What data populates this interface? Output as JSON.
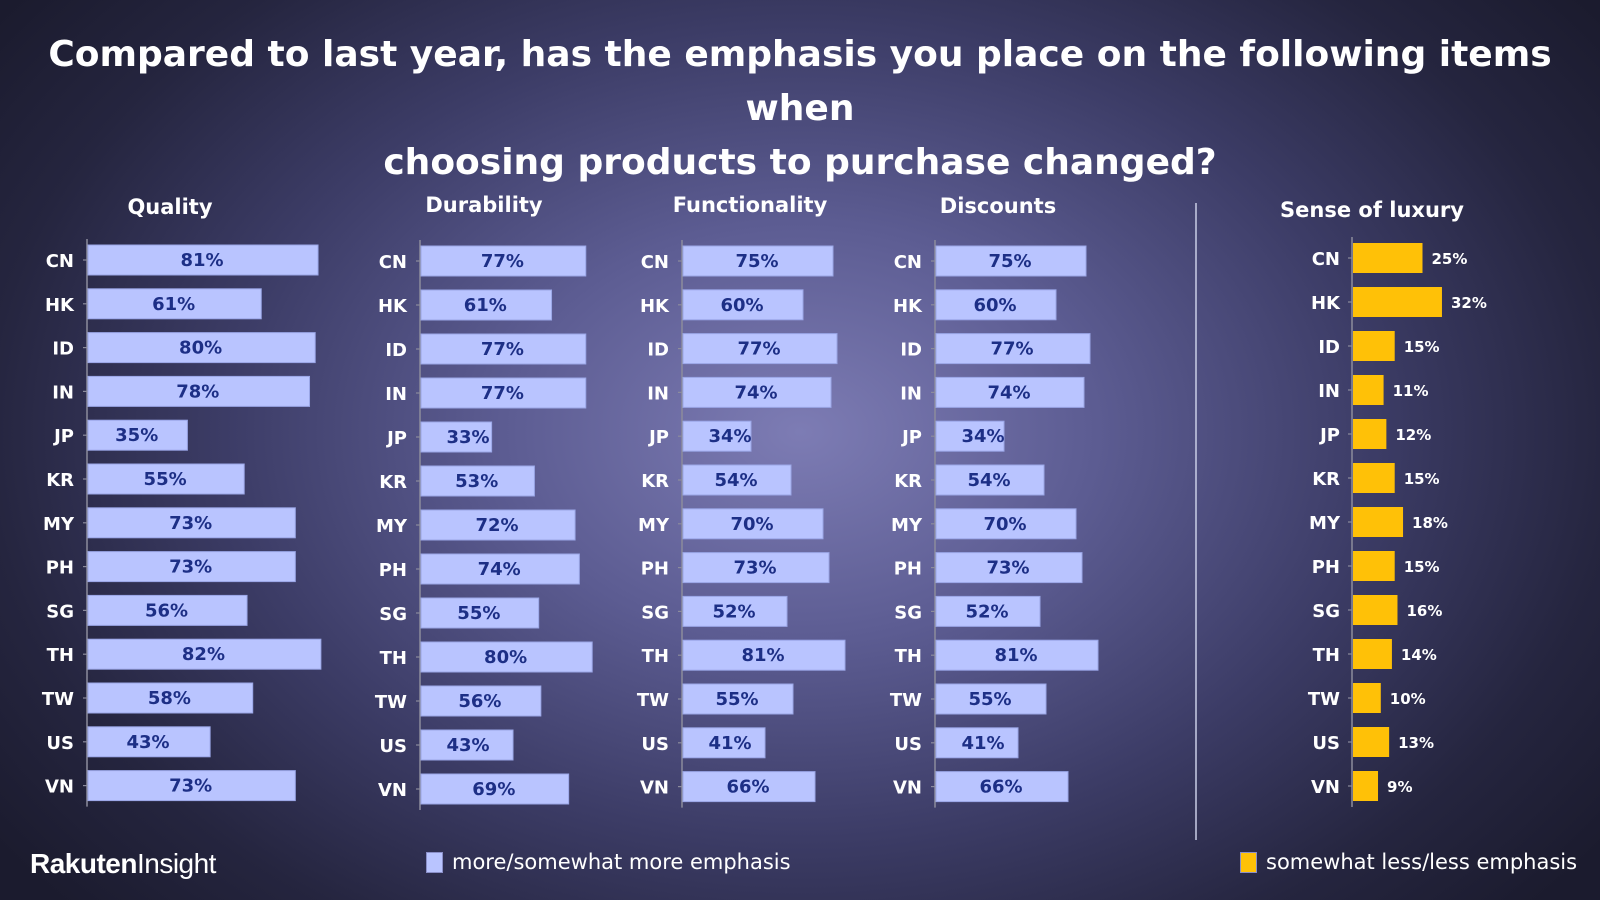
{
  "title_line1": "Compared to last year, has the emphasis you place on the following items when",
  "title_line2": "choosing products to purchase changed?",
  "brand_bold": "Rakuten",
  "brand_light": "Insight",
  "legend": {
    "more_label": "more/somewhat more emphasis",
    "less_label": "somewhat less/less emphasis"
  },
  "colors": {
    "more": "#b9c4ff",
    "more_text": "#1d2f86",
    "less": "#ffc107",
    "label": "#ffffff"
  },
  "chart_data": [
    {
      "type": "bar",
      "orientation": "horizontal",
      "title": "Quality",
      "series_name": "more/somewhat more emphasis",
      "categories": [
        "CN",
        "HK",
        "ID",
        "IN",
        "JP",
        "KR",
        "MY",
        "PH",
        "SG",
        "TH",
        "TW",
        "US",
        "VN"
      ],
      "values": [
        81,
        61,
        80,
        78,
        35,
        55,
        73,
        73,
        56,
        82,
        58,
        43,
        73
      ],
      "value_format": "percent"
    },
    {
      "type": "bar",
      "orientation": "horizontal",
      "title": "Durability",
      "series_name": "more/somewhat more emphasis",
      "categories": [
        "CN",
        "HK",
        "ID",
        "IN",
        "JP",
        "KR",
        "MY",
        "PH",
        "SG",
        "TH",
        "TW",
        "US",
        "VN"
      ],
      "values": [
        77,
        61,
        77,
        77,
        33,
        53,
        72,
        74,
        55,
        80,
        56,
        43,
        69
      ],
      "value_format": "percent"
    },
    {
      "type": "bar",
      "orientation": "horizontal",
      "title": "Functionality",
      "series_name": "more/somewhat more emphasis",
      "categories": [
        "CN",
        "HK",
        "ID",
        "IN",
        "JP",
        "KR",
        "MY",
        "PH",
        "SG",
        "TH",
        "TW",
        "US",
        "VN"
      ],
      "values": [
        75,
        60,
        77,
        74,
        34,
        54,
        70,
        73,
        52,
        81,
        55,
        41,
        66
      ],
      "value_format": "percent"
    },
    {
      "type": "bar",
      "orientation": "horizontal",
      "title": "Discounts",
      "series_name": "more/somewhat more emphasis",
      "categories": [
        "CN",
        "HK",
        "ID",
        "IN",
        "JP",
        "KR",
        "MY",
        "PH",
        "SG",
        "TH",
        "TW",
        "US",
        "VN"
      ],
      "values": [
        75,
        60,
        77,
        74,
        34,
        54,
        70,
        73,
        52,
        81,
        55,
        41,
        66
      ],
      "value_format": "percent"
    },
    {
      "type": "bar",
      "orientation": "horizontal",
      "title": "Sense of luxury",
      "series_name": "somewhat less/less emphasis",
      "categories": [
        "CN",
        "HK",
        "ID",
        "IN",
        "JP",
        "KR",
        "MY",
        "PH",
        "SG",
        "TH",
        "TW",
        "US",
        "VN"
      ],
      "values": [
        25,
        32,
        15,
        11,
        12,
        15,
        18,
        15,
        16,
        14,
        10,
        13,
        9
      ],
      "value_format": "percent"
    }
  ]
}
